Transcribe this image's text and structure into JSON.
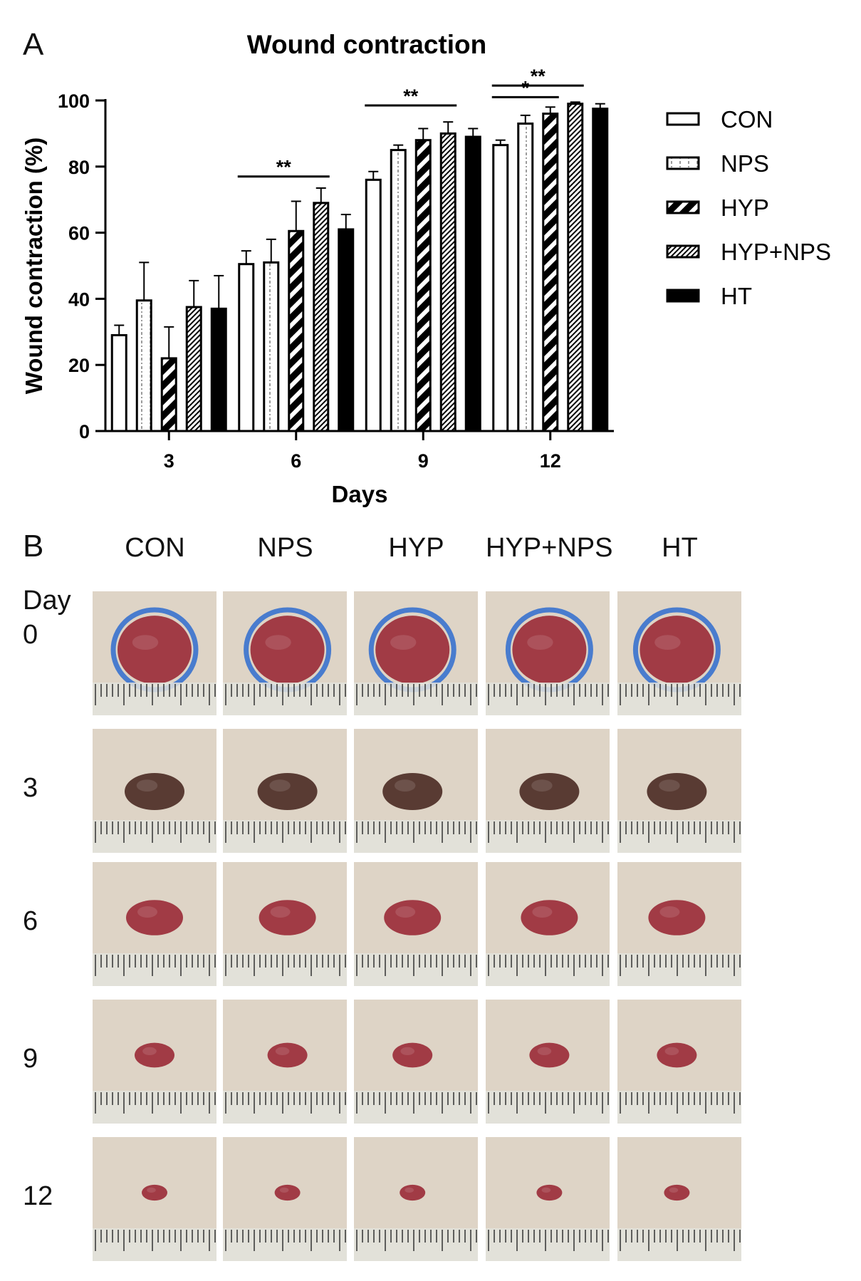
{
  "panel_a_label": "A",
  "panel_b_label": "B",
  "chart_data": {
    "type": "bar",
    "title": "Wound contraction",
    "xlabel": "Days",
    "ylabel": "Wound contraction (%)",
    "ylim": [
      0,
      100
    ],
    "yticks": [
      0,
      20,
      40,
      60,
      80,
      100
    ],
    "categories": [
      "3",
      "6",
      "9",
      "12"
    ],
    "series": [
      {
        "name": "CON",
        "pattern": "open",
        "values": [
          29,
          50.5,
          76,
          86.5
        ],
        "errors": [
          3,
          4,
          2.5,
          1.5
        ]
      },
      {
        "name": "NPS",
        "pattern": "dotted",
        "values": [
          39.5,
          51,
          85,
          93
        ],
        "errors": [
          11.5,
          7,
          1.5,
          2.5
        ]
      },
      {
        "name": "HYP",
        "pattern": "wide-stripe",
        "values": [
          22,
          60.5,
          88,
          96
        ],
        "errors": [
          9.5,
          9,
          3.5,
          2
        ]
      },
      {
        "name": "HYP+NPS",
        "pattern": "fine-stripe",
        "values": [
          37.5,
          69,
          90,
          99
        ],
        "errors": [
          8,
          4.5,
          3.5,
          0.5
        ]
      },
      {
        "name": "HT",
        "pattern": "solid",
        "values": [
          37,
          61,
          89,
          97.5
        ],
        "errors": [
          10,
          4.5,
          2.5,
          1.5
        ]
      }
    ],
    "significance": [
      {
        "label": "**",
        "category": "6",
        "from_series": "CON",
        "to_series": "HYP+NPS",
        "value": 77
      },
      {
        "label": "**",
        "category": "9",
        "from_series": "CON",
        "to_series": "HYP+NPS",
        "value": 98.5
      },
      {
        "label": "*",
        "category": "12",
        "from_series": "CON",
        "to_series": "HYP",
        "value": 101
      },
      {
        "label": "**",
        "category": "12",
        "from_series": "CON",
        "to_series": "HYP+NPS",
        "value": 104.5
      }
    ],
    "legend_position": "right"
  },
  "photo_panel": {
    "groups": [
      "CON",
      "NPS",
      "HYP",
      "HYP+NPS",
      "HT"
    ],
    "day_header": "Day",
    "days": [
      "0",
      "3",
      "6",
      "9",
      "12"
    ]
  },
  "colors": {
    "bar_edge": "#000000",
    "skin": "#d9cdbd",
    "wound_fresh": "#9a2a36",
    "wound_dark": "#4a2a22",
    "marker": "#2f6ccf",
    "ruler": "#e3e3dc"
  }
}
